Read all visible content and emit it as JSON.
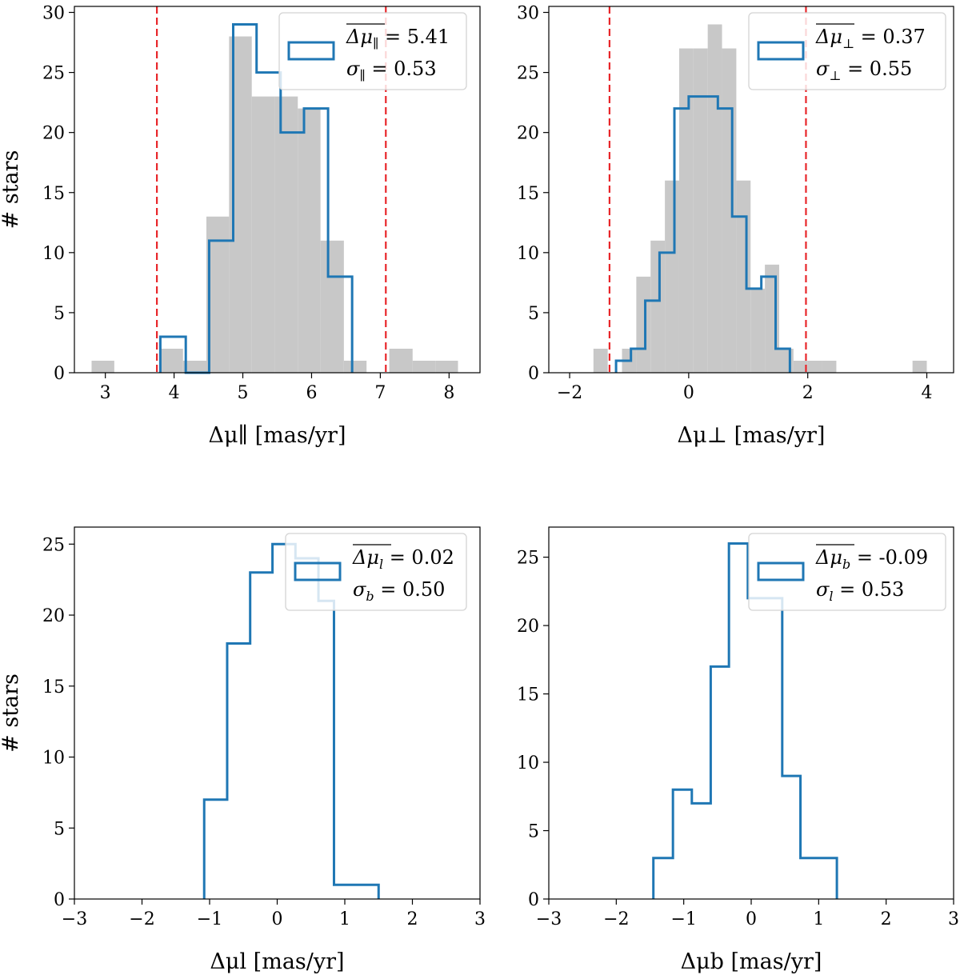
{
  "chart_data": [
    {
      "type": "histogram",
      "xlabel": "Δμ∥ [mas/yr]",
      "ylabel": "# stars",
      "xlim": [
        2.55,
        8.45
      ],
      "ylim": [
        0,
        30.5
      ],
      "xticks": [
        3,
        4,
        5,
        6,
        7,
        8
      ],
      "yticks": [
        0,
        5,
        10,
        15,
        20,
        25,
        30
      ],
      "vlines": [
        3.75,
        7.08
      ],
      "vline_color": "#e8262a",
      "gray_hist": {
        "color": "#c8c8c8",
        "bins": [
          {
            "x0": 2.8,
            "x1": 3.13,
            "count": 1
          },
          {
            "x0": 3.13,
            "x1": 3.47,
            "count": 0
          },
          {
            "x0": 3.47,
            "x1": 3.8,
            "count": 0
          },
          {
            "x0": 3.8,
            "x1": 4.13,
            "count": 2
          },
          {
            "x0": 4.13,
            "x1": 4.47,
            "count": 1
          },
          {
            "x0": 4.47,
            "x1": 4.8,
            "count": 13
          },
          {
            "x0": 4.8,
            "x1": 5.13,
            "count": 28
          },
          {
            "x0": 5.13,
            "x1": 5.47,
            "count": 23
          },
          {
            "x0": 5.47,
            "x1": 5.8,
            "count": 23
          },
          {
            "x0": 5.8,
            "x1": 6.13,
            "count": 22
          },
          {
            "x0": 6.13,
            "x1": 6.47,
            "count": 11
          },
          {
            "x0": 6.47,
            "x1": 6.8,
            "count": 1
          },
          {
            "x0": 6.8,
            "x1": 7.13,
            "count": 0
          },
          {
            "x0": 7.13,
            "x1": 7.47,
            "count": 2
          },
          {
            "x0": 7.47,
            "x1": 7.8,
            "count": 1
          },
          {
            "x0": 7.8,
            "x1": 8.13,
            "count": 1
          }
        ]
      },
      "step_hist": {
        "color": "#1f77b4",
        "edges": [
          3.8,
          4.17,
          4.51,
          4.86,
          5.2,
          5.55,
          5.89,
          6.24,
          6.59
        ],
        "counts": [
          3,
          0,
          11,
          29,
          25,
          20,
          22,
          8
        ]
      },
      "legend": {
        "location": "upper right",
        "mean_sym": "Δμ",
        "mean_sub": "∥",
        "mean_value": "= 5.41",
        "sigma_sub": "∥",
        "sigma_value": "= 0.53"
      }
    },
    {
      "type": "histogram",
      "xlabel": "Δμ⊥ [mas/yr]",
      "ylabel": "",
      "xlim": [
        -2.35,
        4.45
      ],
      "ylim": [
        0,
        30.5
      ],
      "xticks": [
        -2,
        0,
        2,
        4
      ],
      "yticks": [
        0,
        5,
        10,
        15,
        20,
        25,
        30
      ],
      "vlines": [
        -1.33,
        1.97
      ],
      "vline_color": "#e8262a",
      "gray_hist": {
        "color": "#c8c8c8",
        "bins": [
          {
            "x0": -1.6,
            "x1": -1.36,
            "count": 2
          },
          {
            "x0": -1.36,
            "x1": -1.12,
            "count": 0
          },
          {
            "x0": -1.12,
            "x1": -0.88,
            "count": 2
          },
          {
            "x0": -0.88,
            "x1": -0.64,
            "count": 8
          },
          {
            "x0": -0.64,
            "x1": -0.4,
            "count": 11
          },
          {
            "x0": -0.4,
            "x1": -0.16,
            "count": 16
          },
          {
            "x0": -0.16,
            "x1": 0.08,
            "count": 27
          },
          {
            "x0": 0.08,
            "x1": 0.32,
            "count": 27
          },
          {
            "x0": 0.32,
            "x1": 0.56,
            "count": 29
          },
          {
            "x0": 0.56,
            "x1": 0.8,
            "count": 27
          },
          {
            "x0": 0.8,
            "x1": 1.04,
            "count": 16
          },
          {
            "x0": 1.04,
            "x1": 1.28,
            "count": 7
          },
          {
            "x0": 1.28,
            "x1": 1.52,
            "count": 9
          },
          {
            "x0": 1.52,
            "x1": 1.76,
            "count": 2
          },
          {
            "x0": 1.76,
            "x1": 2.0,
            "count": 1
          },
          {
            "x0": 2.0,
            "x1": 2.24,
            "count": 1
          },
          {
            "x0": 2.24,
            "x1": 2.48,
            "count": 1
          },
          {
            "x0": 3.76,
            "x1": 4.0,
            "count": 1
          }
        ]
      },
      "step_hist": {
        "color": "#1f77b4",
        "edges": [
          -1.22,
          -0.97,
          -0.73,
          -0.49,
          -0.24,
          0.0,
          0.24,
          0.49,
          0.73,
          0.97,
          1.22,
          1.46,
          1.7
        ],
        "counts": [
          1,
          2,
          6,
          10,
          22,
          23,
          23,
          22,
          13,
          7,
          8,
          2
        ]
      },
      "legend": {
        "location": "upper right",
        "mean_sym": "Δμ",
        "mean_sub": "⊥",
        "mean_value": "= 0.37",
        "sigma_sub": "⊥",
        "sigma_value": "= 0.55"
      }
    },
    {
      "type": "histogram",
      "xlabel": "Δμl [mas/yr]",
      "ylabel": "# stars",
      "xlim": [
        -3,
        3
      ],
      "ylim": [
        0,
        26.2
      ],
      "xticks": [
        -3,
        -2,
        -1,
        0,
        1,
        2,
        3
      ],
      "yticks": [
        0,
        5,
        10,
        15,
        20,
        25
      ],
      "vlines": [],
      "step_hist": {
        "color": "#1f77b4",
        "edges": [
          -1.08,
          -0.74,
          -0.4,
          -0.07,
          0.27,
          0.61,
          0.84,
          1.5
        ],
        "counts": [
          7,
          18,
          23,
          25,
          24,
          21,
          1
        ]
      },
      "legend": {
        "location": "upper right",
        "mean_sym": "Δμ",
        "mean_sub": "l",
        "mean_value": "= 0.02",
        "sigma_sub": "b",
        "sigma_value": "= 0.50"
      }
    },
    {
      "type": "histogram",
      "xlabel": "Δμb [mas/yr]",
      "ylabel": "",
      "xlim": [
        -3,
        3
      ],
      "ylim": [
        0,
        27.2
      ],
      "xticks": [
        -3,
        -2,
        -1,
        0,
        1,
        2,
        3
      ],
      "yticks": [
        0,
        5,
        10,
        15,
        20,
        25
      ],
      "vlines": [],
      "step_hist": {
        "color": "#1f77b4",
        "edges": [
          -1.45,
          -1.16,
          -0.88,
          -0.6,
          -0.33,
          -0.05,
          0.23,
          0.46,
          0.73,
          1.27
        ],
        "counts": [
          3,
          8,
          7,
          17,
          26,
          22,
          22,
          9,
          3
        ]
      },
      "legend": {
        "location": "upper right",
        "mean_sym": "Δμ",
        "mean_sub": "b",
        "mean_value": "= -0.09",
        "sigma_sub": "l",
        "sigma_value": "= 0.53"
      }
    }
  ]
}
